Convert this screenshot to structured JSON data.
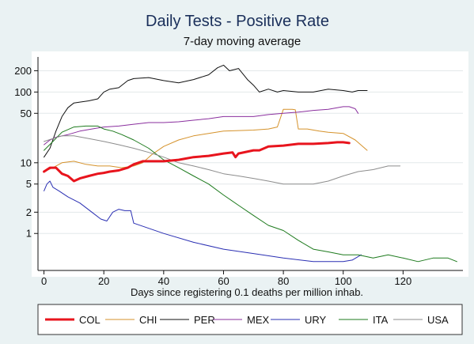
{
  "chart_data": {
    "type": "line",
    "title": "Daily Tests - Positive Rate",
    "subtitle": "7-day moving average",
    "xlabel": "Days since registering 0.1 deaths per million inhab.",
    "ylabel": "",
    "xlim": [
      -2,
      140
    ],
    "ylim": [
      0.3,
      330
    ],
    "yscale": "log",
    "grid": "horizontal",
    "legend_position": "bottom",
    "x_ticks": [
      0,
      20,
      40,
      60,
      80,
      100,
      120
    ],
    "y_ticks": [
      {
        "value": 1,
        "label": "1"
      },
      {
        "value": 2,
        "label": "2"
      },
      {
        "value": 5,
        "label": "5"
      },
      {
        "value": 10,
        "label": "10"
      },
      {
        "value": 50,
        "label": "50"
      },
      {
        "value": 100,
        "label": "100"
      },
      {
        "value": 200,
        "label": "200"
      }
    ],
    "series": [
      {
        "name": "COL",
        "color": "#e8141d",
        "width": 3,
        "x": [
          0,
          2,
          4,
          6,
          8,
          10,
          12,
          15,
          18,
          20,
          22,
          25,
          28,
          30,
          33,
          36,
          40,
          45,
          50,
          55,
          60,
          63,
          64,
          65,
          70,
          72,
          75,
          80,
          85,
          90,
          95,
          98,
          100,
          102
        ],
        "y": [
          7.5,
          8.5,
          8.5,
          7,
          6.5,
          5.5,
          6,
          6.5,
          7,
          7.2,
          7.5,
          7.8,
          8.5,
          9.5,
          10.5,
          10.5,
          10.5,
          11,
          12,
          12.5,
          13.5,
          14,
          12,
          13.5,
          15,
          15,
          17,
          17.5,
          18.5,
          18.5,
          19,
          19.5,
          19.5,
          19
        ]
      },
      {
        "name": "CHI",
        "color": "#d5922b",
        "width": 1,
        "x": [
          0,
          3,
          6,
          10,
          14,
          18,
          22,
          26,
          30,
          33,
          36,
          40,
          45,
          50,
          55,
          60,
          65,
          70,
          75,
          78,
          80,
          83,
          84,
          85,
          88,
          92,
          95,
          100,
          104,
          108
        ],
        "y": [
          7.5,
          8.5,
          10,
          10.5,
          9.5,
          9,
          9,
          8.5,
          9,
          10,
          13,
          17,
          21,
          24,
          26,
          28,
          28.5,
          29,
          30,
          32,
          57,
          57,
          56,
          30,
          30,
          28,
          27,
          26,
          21,
          15
        ]
      },
      {
        "name": "PER",
        "color": "#111111",
        "width": 1,
        "x": [
          0,
          2,
          4,
          6,
          8,
          10,
          12,
          15,
          18,
          20,
          22,
          25,
          28,
          30,
          35,
          40,
          45,
          50,
          55,
          58,
          60,
          62,
          65,
          68,
          70,
          72,
          75,
          78,
          80,
          85,
          90,
          95,
          100,
          103,
          105,
          108
        ],
        "y": [
          12,
          16,
          28,
          45,
          60,
          70,
          72,
          75,
          80,
          100,
          110,
          115,
          145,
          155,
          160,
          145,
          135,
          150,
          175,
          220,
          240,
          200,
          215,
          150,
          125,
          100,
          110,
          100,
          105,
          100,
          100,
          110,
          105,
          100,
          105,
          105
        ]
      },
      {
        "name": "MEX",
        "color": "#8a2f9e",
        "width": 1,
        "x": [
          0,
          2,
          4,
          8,
          12,
          16,
          20,
          25,
          30,
          35,
          40,
          45,
          50,
          55,
          60,
          65,
          70,
          75,
          80,
          85,
          90,
          95,
          100,
          102,
          104,
          105
        ],
        "y": [
          18,
          21,
          23,
          25,
          28,
          30,
          32,
          33,
          35,
          37,
          37,
          38,
          40,
          42,
          45,
          45,
          45,
          48,
          50,
          52,
          55,
          57,
          62,
          62,
          58,
          50
        ]
      },
      {
        "name": "URY",
        "color": "#2a2fb3",
        "width": 1,
        "x": [
          0,
          1,
          2,
          3,
          5,
          8,
          12,
          16,
          19,
          21,
          23,
          25,
          27,
          29,
          30,
          40,
          50,
          60,
          70,
          80,
          90,
          100,
          103,
          106
        ],
        "y": [
          4,
          5,
          5.5,
          4.5,
          4,
          3.3,
          2.7,
          2,
          1.6,
          1.5,
          2,
          2.2,
          2.1,
          2.1,
          1.4,
          1,
          0.75,
          0.6,
          0.52,
          0.45,
          0.4,
          0.4,
          0.42,
          0.5
        ]
      },
      {
        "name": "ITA",
        "color": "#1d7a1d",
        "width": 1,
        "x": [
          0,
          3,
          6,
          10,
          14,
          18,
          20,
          23,
          26,
          30,
          35,
          40,
          45,
          50,
          55,
          60,
          65,
          70,
          75,
          80,
          85,
          90,
          95,
          100,
          105,
          110,
          115,
          120,
          125,
          130,
          135,
          138
        ],
        "y": [
          15,
          20,
          27,
          32,
          33,
          33,
          30,
          28,
          25,
          21,
          16,
          11,
          8.5,
          6.5,
          5,
          3.5,
          2.5,
          1.8,
          1.3,
          1.1,
          0.8,
          0.6,
          0.55,
          0.5,
          0.5,
          0.45,
          0.5,
          0.45,
          0.4,
          0.45,
          0.45,
          0.4
        ]
      },
      {
        "name": "USA",
        "color": "#8c8c8c",
        "width": 1,
        "x": [
          0,
          3,
          6,
          10,
          15,
          20,
          25,
          30,
          35,
          40,
          45,
          50,
          55,
          60,
          65,
          70,
          75,
          80,
          85,
          90,
          95,
          100,
          105,
          110,
          115,
          119
        ],
        "y": [
          20,
          22,
          24,
          24,
          22,
          20,
          18,
          16,
          14,
          12,
          10,
          9,
          8,
          7,
          6.5,
          6,
          5.5,
          5,
          5,
          5,
          5.5,
          6.5,
          7.5,
          8,
          9,
          9
        ]
      }
    ]
  }
}
